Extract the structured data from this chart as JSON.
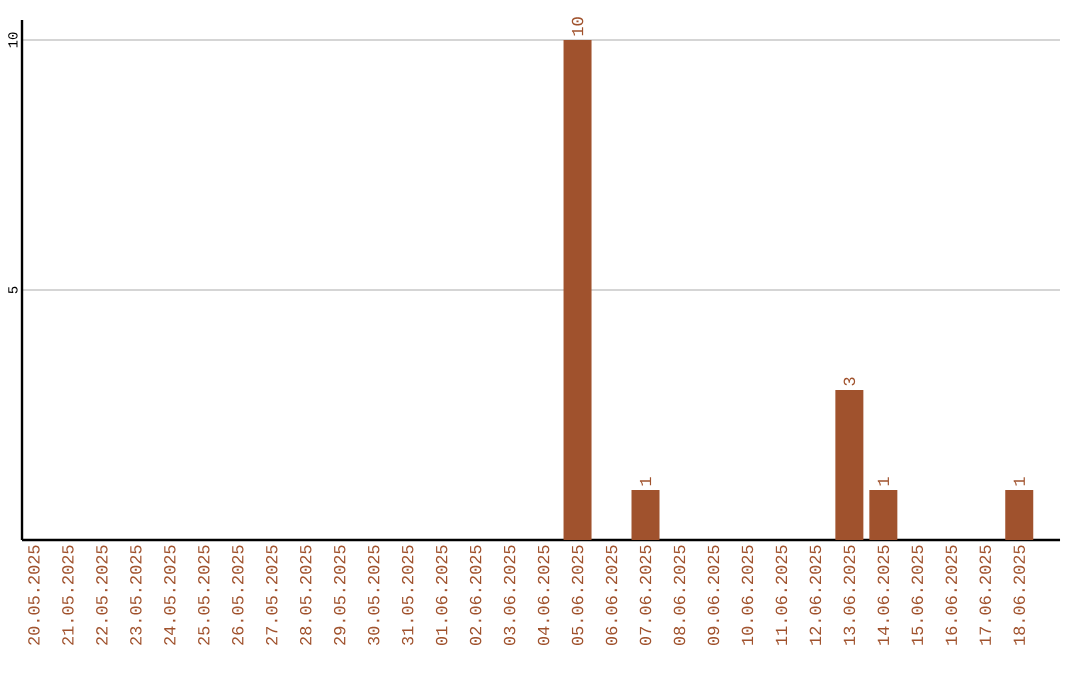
{
  "chart_data": {
    "type": "bar",
    "categories": [
      "20.05.2025",
      "21.05.2025",
      "22.05.2025",
      "23.05.2025",
      "24.05.2025",
      "25.05.2025",
      "26.05.2025",
      "27.05.2025",
      "28.05.2025",
      "29.05.2025",
      "30.05.2025",
      "31.05.2025",
      "01.06.2025",
      "02.06.2025",
      "03.06.2025",
      "04.06.2025",
      "05.06.2025",
      "06.06.2025",
      "07.06.2025",
      "08.06.2025",
      "09.06.2025",
      "10.06.2025",
      "11.06.2025",
      "12.06.2025",
      "13.06.2025",
      "14.06.2025",
      "15.06.2025",
      "16.06.2025",
      "17.06.2025",
      "18.06.2025"
    ],
    "values": [
      0,
      0,
      0,
      0,
      0,
      0,
      0,
      0,
      0,
      0,
      0,
      0,
      0,
      0,
      0,
      0,
      10,
      0,
      1,
      0,
      0,
      0,
      0,
      0,
      3,
      1,
      0,
      0,
      0,
      1
    ],
    "value_labels": [
      null,
      null,
      null,
      null,
      null,
      null,
      null,
      null,
      null,
      null,
      null,
      null,
      null,
      null,
      null,
      null,
      "10",
      null,
      "1",
      null,
      null,
      null,
      null,
      null,
      "3",
      "1",
      null,
      null,
      null,
      "1"
    ],
    "color": "#a0522d",
    "ylim": [
      0,
      10.4
    ],
    "yticks": [
      5,
      10
    ],
    "grid": "y"
  }
}
